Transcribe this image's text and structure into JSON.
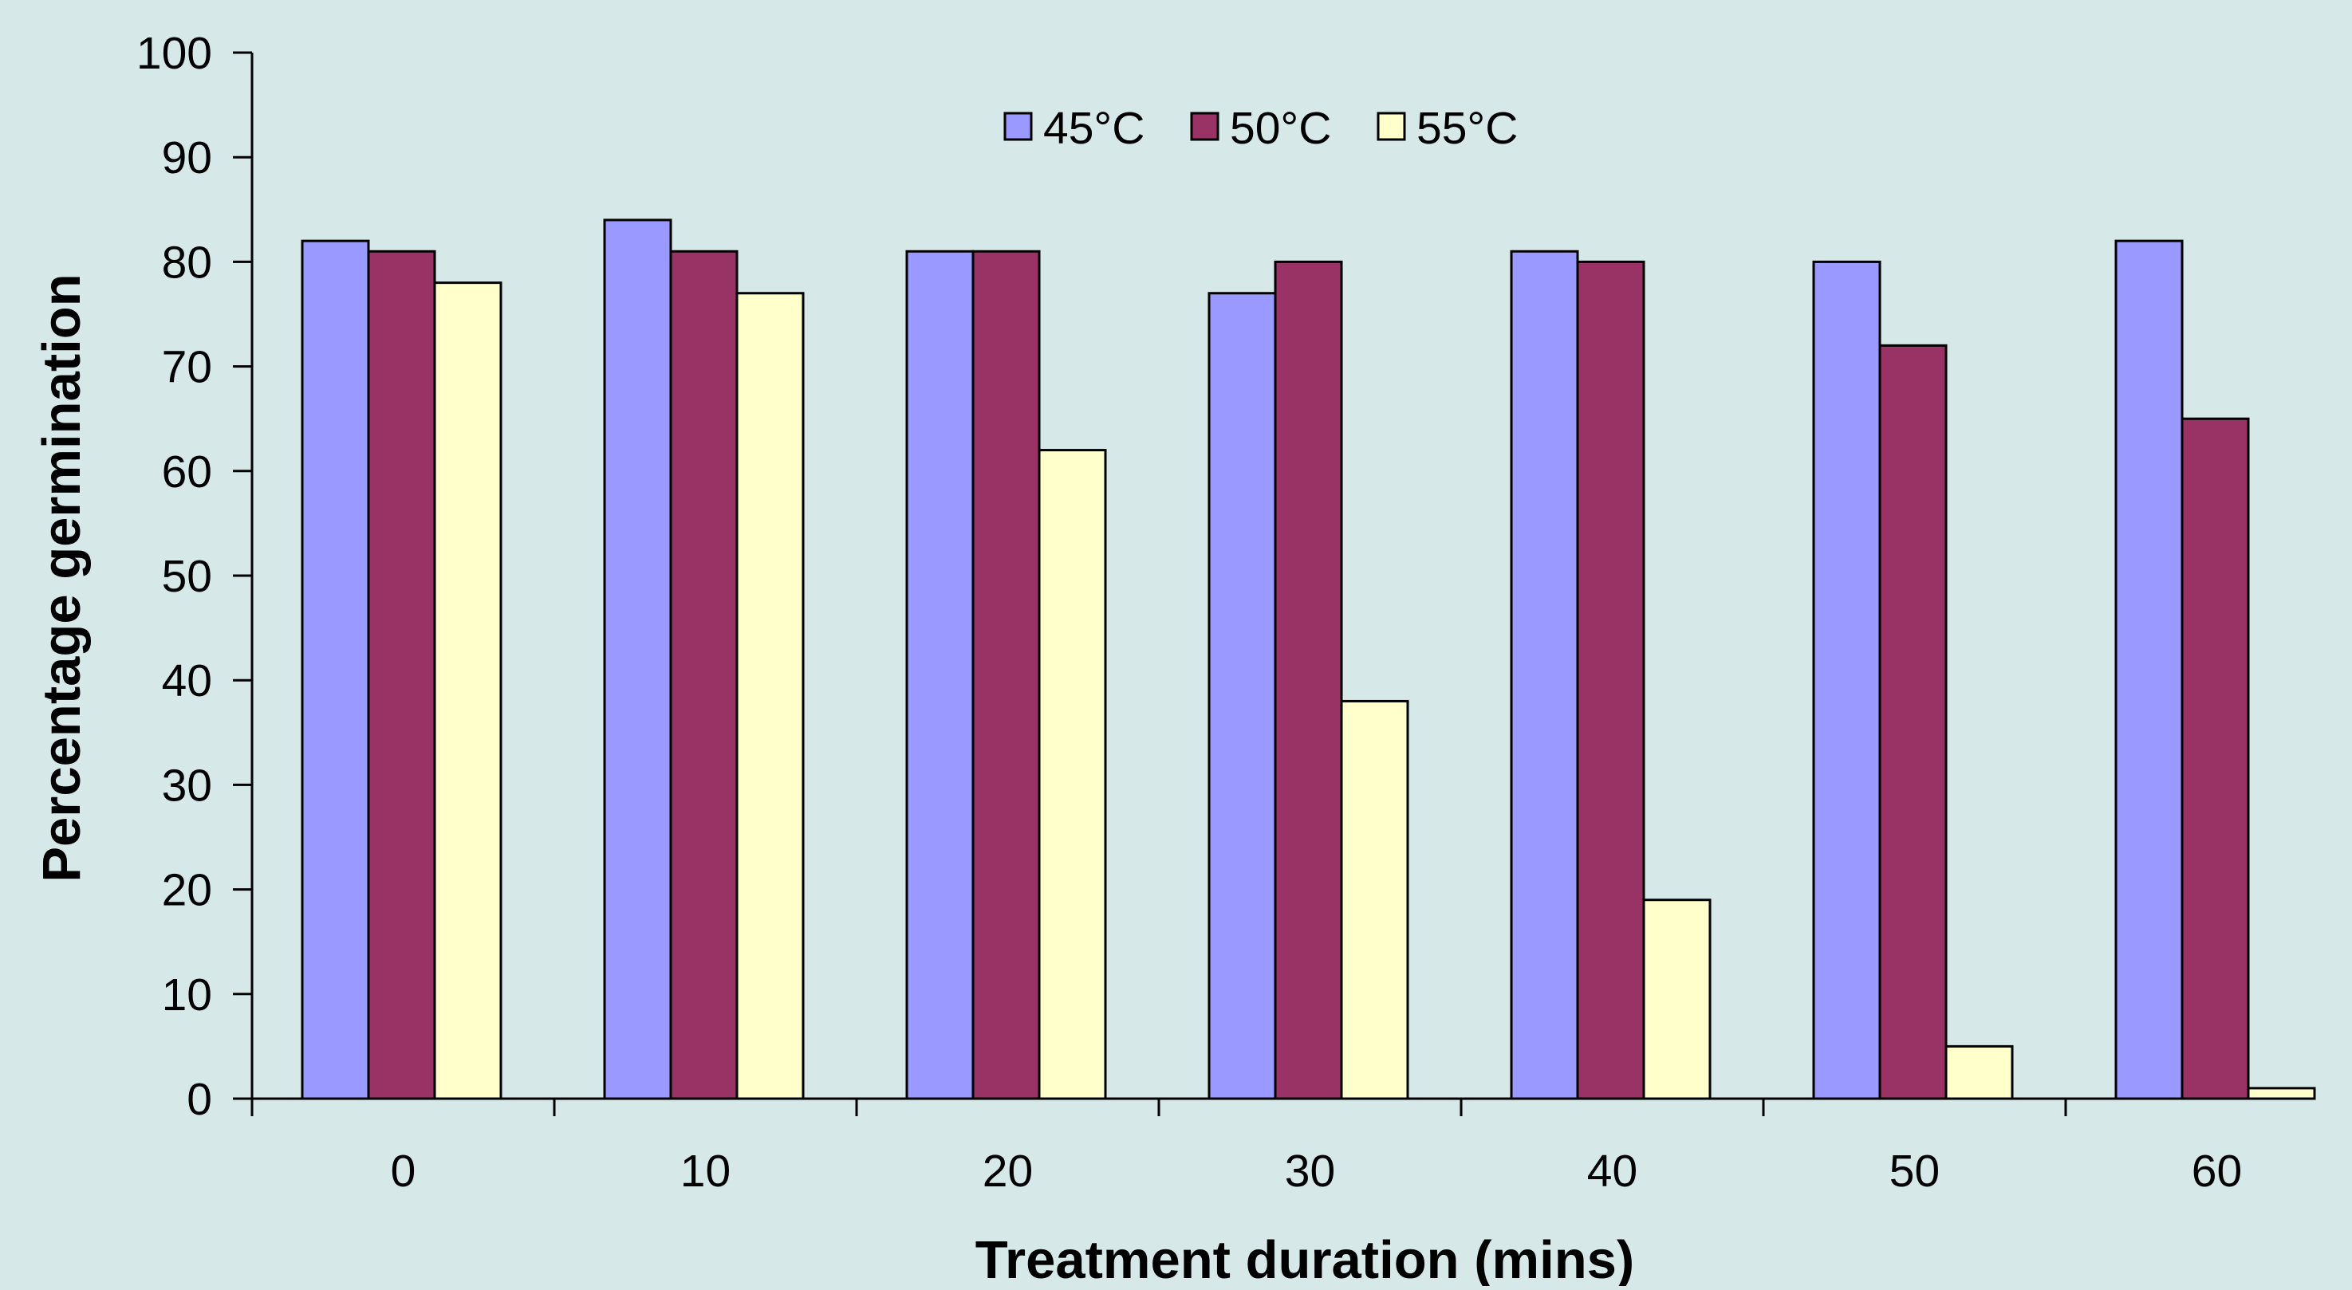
{
  "chart_data": {
    "type": "bar",
    "xlabel": "Treatment duration (mins)",
    "ylabel": "Percentage germination",
    "categories": [
      "0",
      "10",
      "20",
      "30",
      "40",
      "50",
      "60"
    ],
    "series": [
      {
        "name": "45°C",
        "color": "#9999ff",
        "values": [
          82,
          84,
          81,
          77,
          81,
          80,
          82
        ]
      },
      {
        "name": "50°C",
        "color": "#993366",
        "values": [
          81,
          81,
          81,
          80,
          80,
          72,
          65
        ]
      },
      {
        "name": "55°C",
        "color": "#ffffcc",
        "values": [
          78,
          77,
          62,
          38,
          19,
          5,
          1
        ]
      }
    ],
    "ylim": [
      0,
      100
    ],
    "yticks": [
      "0",
      "10",
      "20",
      "30",
      "40",
      "50",
      "60",
      "70",
      "80",
      "90",
      "100"
    ],
    "grid": false,
    "legend_position": "top-center",
    "background_color": "#d6e8e8",
    "bar_outline_color": "#000000"
  }
}
